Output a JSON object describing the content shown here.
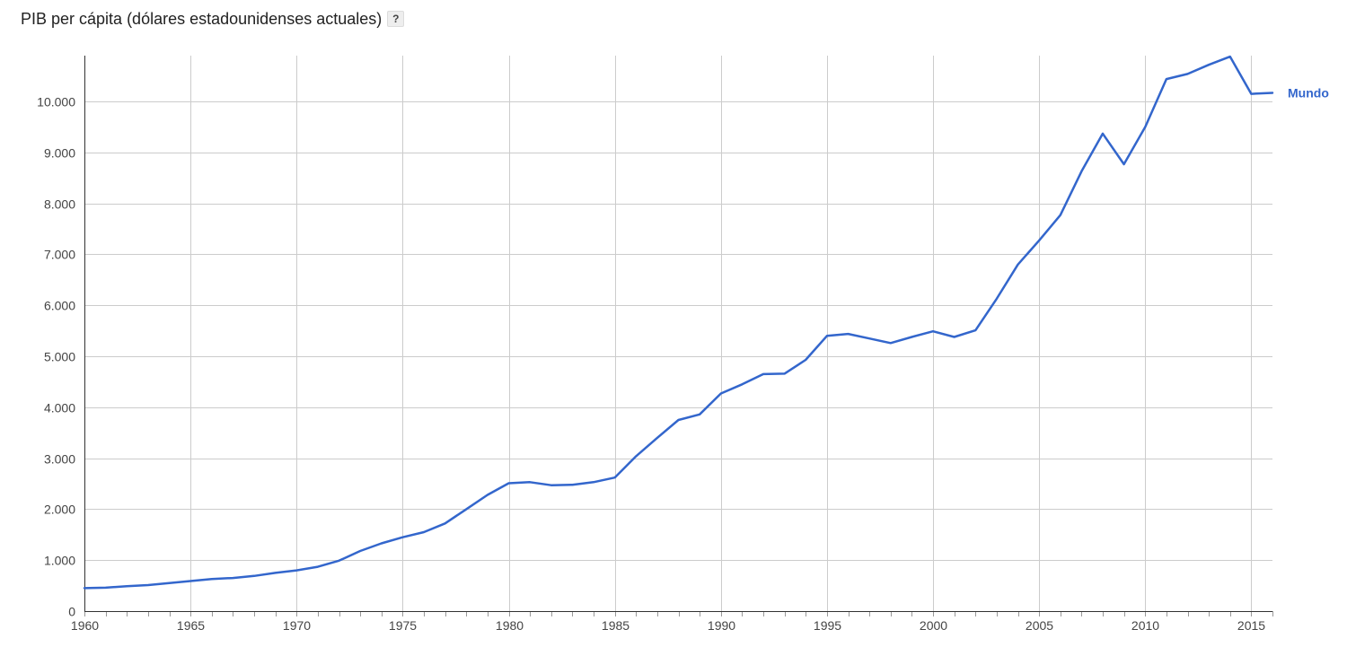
{
  "header": {
    "title": "PIB per cápita (dólares estadounidenses actuales)",
    "help_label": "?"
  },
  "chart_data": {
    "type": "line",
    "title": "PIB per cápita (dólares estadounidenses actuales)",
    "xlabel": "",
    "ylabel": "",
    "xlim": [
      1960,
      2016
    ],
    "ylim": [
      0,
      10900
    ],
    "x_ticks": [
      1960,
      1965,
      1970,
      1975,
      1980,
      1985,
      1990,
      1995,
      2000,
      2005,
      2010,
      2015
    ],
    "y_ticks": [
      0,
      1000,
      2000,
      3000,
      4000,
      5000,
      6000,
      7000,
      8000,
      9000,
      10000
    ],
    "y_tick_labels": [
      "0",
      "1.000",
      "2.000",
      "3.000",
      "4.000",
      "5.000",
      "6.000",
      "7.000",
      "8.000",
      "9.000",
      "10.000"
    ],
    "grid": true,
    "legend": "inline-end",
    "colors": {
      "series": "#3366cc",
      "grid": "#cccccc"
    },
    "series": [
      {
        "name": "Mundo",
        "x": [
          1960,
          1961,
          1962,
          1963,
          1964,
          1965,
          1966,
          1967,
          1968,
          1969,
          1970,
          1971,
          1972,
          1973,
          1974,
          1975,
          1976,
          1977,
          1978,
          1979,
          1980,
          1981,
          1982,
          1983,
          1984,
          1985,
          1986,
          1987,
          1988,
          1989,
          1990,
          1991,
          1992,
          1993,
          1994,
          1995,
          1996,
          1997,
          1998,
          1999,
          2000,
          2001,
          2002,
          2003,
          2004,
          2005,
          2006,
          2007,
          2008,
          2009,
          2010,
          2011,
          2012,
          2013,
          2014,
          2015,
          2016
        ],
        "values": [
          450,
          460,
          490,
          510,
          550,
          590,
          630,
          650,
          690,
          750,
          800,
          870,
          990,
          1180,
          1330,
          1450,
          1550,
          1720,
          2000,
          2280,
          2510,
          2530,
          2470,
          2480,
          2530,
          2620,
          3040,
          3400,
          3750,
          3860,
          4270,
          4450,
          4650,
          4660,
          4930,
          5400,
          5440,
          5350,
          5260,
          5380,
          5490,
          5380,
          5510,
          6130,
          6800,
          7270,
          7770,
          8630,
          9370,
          8770,
          9500,
          10440,
          10540,
          10720,
          10880,
          10150,
          10170
        ]
      }
    ]
  }
}
